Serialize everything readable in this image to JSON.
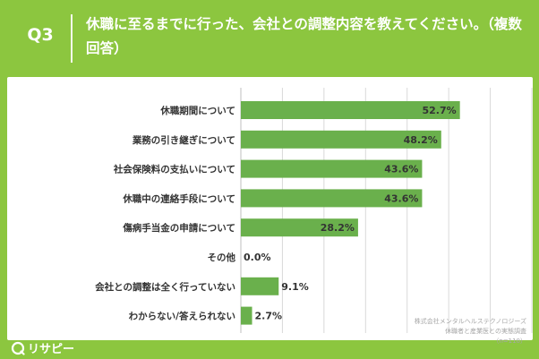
{
  "header": {
    "question_label": "Q3",
    "title": "休職に至るまでに行った、会社との調整内容を教えてください。（複数回答）"
  },
  "chart_data": {
    "type": "bar",
    "orientation": "horizontal",
    "categories": [
      "休職期間について",
      "業務の引き継ぎについて",
      "社会保険料の支払いについて",
      "休職中の連絡手段について",
      "傷病手当金の申請について",
      "その他",
      "会社との調整は全く行っていない",
      "わからない/答えられない"
    ],
    "values": [
      52.7,
      48.2,
      43.6,
      43.6,
      28.2,
      0.0,
      9.1,
      2.7
    ],
    "value_labels": [
      "52.7%",
      "48.2%",
      "43.6%",
      "43.6%",
      "28.2%",
      "0.0%",
      "9.1%",
      "2.7%"
    ],
    "xlim": [
      0,
      70
    ],
    "grid": true,
    "bar_color": "#6ab04c"
  },
  "footnote": {
    "line1": "株式会社メンタルヘルステクノロジーズ",
    "line2": "休職者と産業医との実態調査",
    "line3": "（n=110）"
  },
  "brand": {
    "logo_text": "リサピー"
  }
}
